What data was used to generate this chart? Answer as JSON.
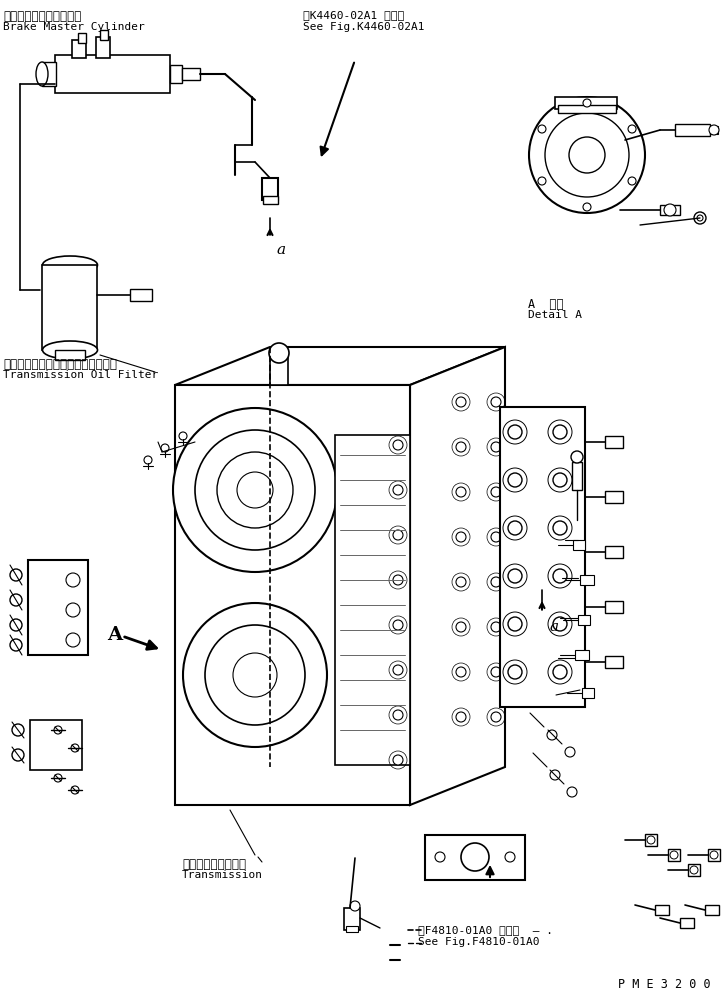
{
  "background_color": "#ffffff",
  "figsize": [
    7.25,
    9.92
  ],
  "dpi": 100,
  "labels": {
    "brake_master_jp": "ブレーキマスタシリンダ",
    "brake_master_en": "Brake Master Cylinder",
    "fig_ref_jp": "第K4460-02A1 図参照",
    "fig_ref_en": "See Fig.K4460-02A1",
    "detail_A_jp": "A  詳細",
    "detail_A_en": "Detail A",
    "oil_filter_jp": "トランスミッションオイルフィルタ",
    "oil_filter_en": "Transmission Oil Filter",
    "transmission_jp": "トランスミッション",
    "transmission_en": "Transmission",
    "fig_ref2_jp": "第F4810-01A0 図参照  ‒ .",
    "fig_ref2_en": "See Fig.F4810-01A0",
    "watermark": "P M E 3 2 0 0",
    "label_a1": "a",
    "label_a2": "a",
    "label_A": "A"
  },
  "colors": {
    "line": "#000000",
    "background": "#ffffff",
    "text": "#000000"
  }
}
